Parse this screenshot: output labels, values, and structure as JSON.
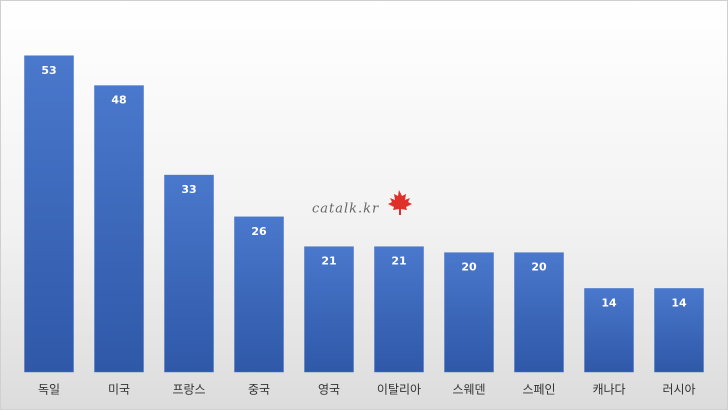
{
  "chart_data": {
    "type": "bar",
    "watermark": "catalk.kr",
    "categories": [
      "독일",
      "미국",
      "프랑스",
      "중국",
      "영국",
      "이탈리아",
      "스웨덴",
      "스페인",
      "캐나다",
      "러시아"
    ],
    "values": [
      53,
      48,
      33,
      26,
      21,
      21,
      20,
      20,
      14,
      14
    ],
    "color": "#4472c4",
    "ylim": [
      0,
      60
    ]
  }
}
